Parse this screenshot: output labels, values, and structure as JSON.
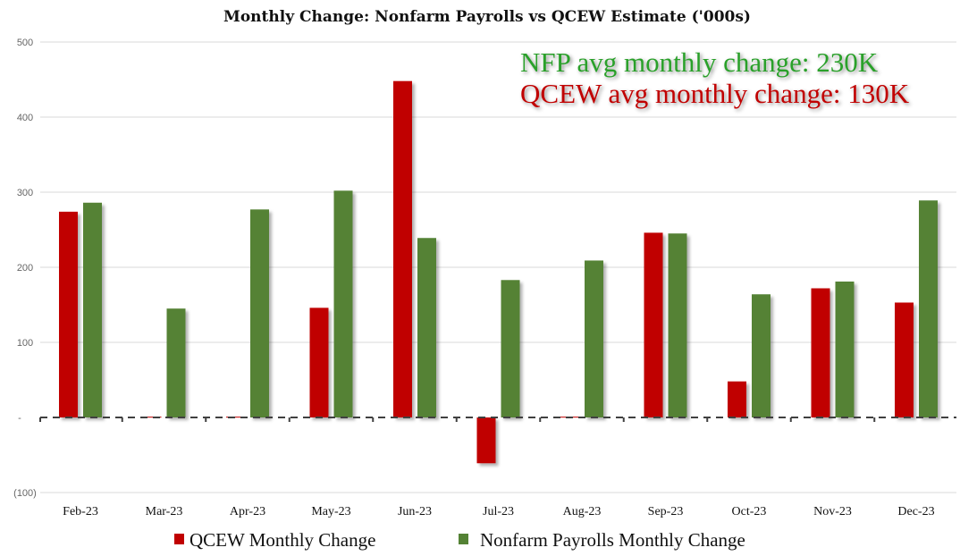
{
  "chart_data": {
    "type": "bar",
    "title": "Monthly Change: Nonfarm Payrolls vs QCEW Estimate ('000s)",
    "categories": [
      "Feb-23",
      "Mar-23",
      "Apr-23",
      "May-23",
      "Jun-23",
      "Jul-23",
      "Aug-23",
      "Sep-23",
      "Oct-23",
      "Nov-23",
      "Dec-23"
    ],
    "series": [
      {
        "name": "QCEW Monthly Change",
        "color": "#c00000",
        "values": [
          274,
          1,
          1,
          146,
          448,
          -61,
          1,
          246,
          48,
          172,
          153
        ]
      },
      {
        "name": "Nonfarm Payrolls Monthly Change",
        "color": "#548235",
        "values": [
          286,
          145,
          277,
          302,
          239,
          183,
          209,
          245,
          164,
          181,
          289
        ]
      }
    ],
    "ylim": [
      -100,
      500
    ],
    "yticks": [
      500,
      400,
      300,
      200,
      100,
      0,
      -100
    ],
    "ytick_labels": [
      "500",
      "400",
      "300",
      "200",
      "100",
      "-",
      "(100)"
    ],
    "grid": true,
    "legend": "bottom",
    "annotations": [
      {
        "text": "NFP avg monthly change: 230K",
        "color": "#2ca02c"
      },
      {
        "text": "QCEW avg monthly change: 130K",
        "color": "#c00000"
      }
    ]
  }
}
